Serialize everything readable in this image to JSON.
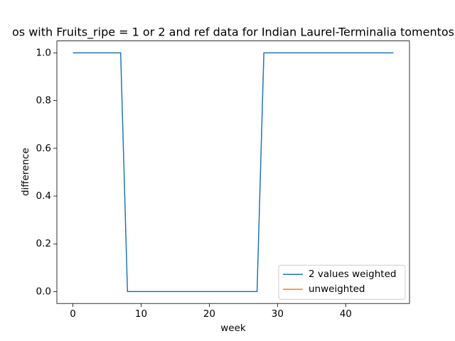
{
  "chart_data": {
    "type": "line",
    "title": "os with Fruits_ripe = 1 or 2 and ref data for Indian Laurel-Terminalia tomentos",
    "xlabel": "week",
    "ylabel": "difference",
    "x": [
      0,
      1,
      2,
      3,
      4,
      5,
      6,
      7,
      8,
      9,
      10,
      11,
      12,
      13,
      14,
      15,
      16,
      17,
      18,
      19,
      20,
      21,
      22,
      23,
      24,
      25,
      26,
      27,
      28,
      29,
      30,
      31,
      32,
      33,
      34,
      35,
      36,
      37,
      38,
      39,
      40,
      41,
      42,
      43,
      44,
      45,
      46,
      47
    ],
    "series": [
      {
        "name": "2 values weighted",
        "color": "#1f77b4",
        "values": [
          1,
          1,
          1,
          1,
          1,
          1,
          1,
          1,
          0,
          0,
          0,
          0,
          0,
          0,
          0,
          0,
          0,
          0,
          0,
          0,
          0,
          0,
          0,
          0,
          0,
          0,
          0,
          0,
          1,
          1,
          1,
          1,
          1,
          1,
          1,
          1,
          1,
          1,
          1,
          1,
          1,
          1,
          1,
          1,
          1,
          1,
          1,
          1
        ]
      },
      {
        "name": "unweighted",
        "color": "#ff7f0e",
        "values": [
          null,
          null,
          null,
          null,
          null,
          null,
          null,
          null,
          null,
          null,
          null,
          null,
          null,
          null,
          null,
          null,
          null,
          null,
          null,
          null,
          null,
          null,
          null,
          null,
          null,
          null,
          null,
          null,
          null,
          null,
          null,
          null,
          null,
          null,
          null,
          null,
          null,
          null,
          null,
          null,
          null,
          null,
          null,
          null,
          null,
          null,
          null,
          null
        ]
      }
    ],
    "xlim": [
      -2.35,
      49.35
    ],
    "xticks": [
      0,
      10,
      20,
      30,
      40
    ],
    "ylim": [
      -0.05,
      1.05
    ],
    "yticks": [
      {
        "value": 0,
        "label": "0.0"
      },
      {
        "value": 0.2,
        "label": "0.2"
      },
      {
        "value": 0.4,
        "label": "0.4"
      },
      {
        "value": 0.6,
        "label": "0.6"
      },
      {
        "value": 0.8,
        "label": "0.8"
      },
      {
        "value": 1,
        "label": "1.0"
      }
    ],
    "legend": "lower right"
  }
}
